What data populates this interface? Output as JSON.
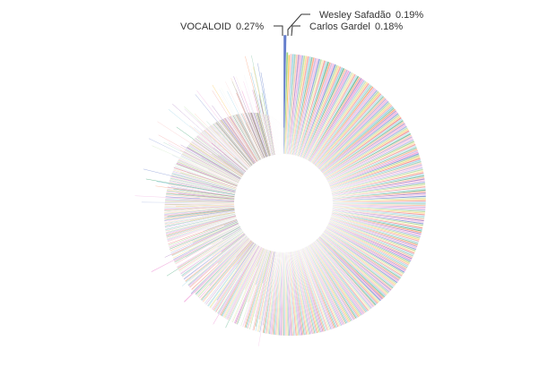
{
  "chart_data": {
    "type": "pie",
    "variant": "donut-rose",
    "slice_count": 1200,
    "palette": [
      "#5470c6",
      "#91cc75",
      "#fac858",
      "#ee6666",
      "#73c0de",
      "#3ba272",
      "#fc8452",
      "#9a60b4",
      "#ea7ccc"
    ],
    "labeled_slices": [
      {
        "name": "VOCALOID",
        "value_text": "0.27%",
        "value": 0.27
      },
      {
        "name": "Wesley Safadão",
        "value_text": "0.19%",
        "value": 0.19
      },
      {
        "name": "Carlos Gardel",
        "value_text": "0.18%",
        "value": 0.18
      }
    ],
    "legend": "none",
    "grid": false
  }
}
